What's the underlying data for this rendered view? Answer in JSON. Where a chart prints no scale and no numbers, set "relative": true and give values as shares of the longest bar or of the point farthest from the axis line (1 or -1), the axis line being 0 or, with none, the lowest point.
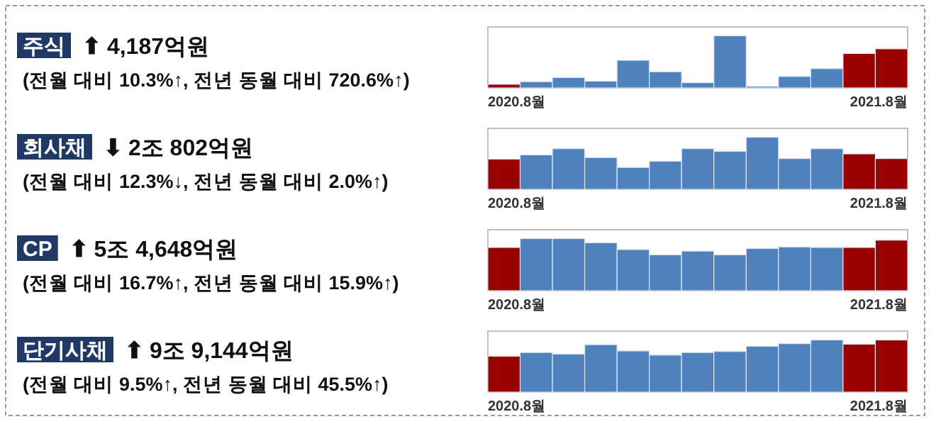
{
  "chart_data": [
    {
      "type": "other",
      "title": "주식",
      "subtitle": "⬆ 4,187억원",
      "annotations": [
        "(전월 대비 10.3%↑, 전년 동월 대비 720.6%↑)"
      ]
    },
    {
      "type": "bar",
      "categories": [
        "2020.8월",
        null,
        null,
        null,
        null,
        null,
        null,
        null,
        null,
        null,
        null,
        null,
        "2021.8월"
      ],
      "relative": true,
      "values": [
        0.07,
        0.12,
        0.2,
        0.13,
        0.53,
        0.31,
        0.1,
        1,
        0.03,
        0.22,
        0.37,
        0.66,
        0.75
      ],
      "colors": [
        "#990000",
        "#4f81bd",
        "#4f81bd",
        "#4f81bd",
        "#4f81bd",
        "#4f81bd",
        "#4f81bd",
        "#4f81bd",
        "#4f81bd",
        "#4f81bd",
        "#4f81bd",
        "#990000",
        "#990000"
      ]
    },
    {
      "type": "other",
      "title": "회사채",
      "subtitle": "⬇ 2조 802억원",
      "annotations": [
        "(전월 대비 12.3%↓, 전년 동월 대비 2.0%↑)"
      ]
    },
    {
      "type": "bar",
      "categories": [
        "2020.8월",
        null,
        null,
        null,
        null,
        null,
        null,
        null,
        null,
        null,
        null,
        null,
        "2021.8월"
      ],
      "relative": true,
      "values": [
        0.58,
        0.66,
        0.78,
        0.61,
        0.42,
        0.54,
        0.78,
        0.73,
        1,
        0.59,
        0.78,
        0.68,
        0.59
      ],
      "colors": [
        "#990000",
        "#4f81bd",
        "#4f81bd",
        "#4f81bd",
        "#4f81bd",
        "#4f81bd",
        "#4f81bd",
        "#4f81bd",
        "#4f81bd",
        "#4f81bd",
        "#4f81bd",
        "#990000",
        "#990000"
      ]
    },
    {
      "type": "other",
      "title": "CP",
      "subtitle": "⬆ 5조 4,648억원",
      "annotations": [
        "(전월 대비 16.7%↑, 전년 동월 대비 15.9%↑)"
      ]
    },
    {
      "type": "bar",
      "categories": [
        "2020.8월",
        null,
        null,
        null,
        null,
        null,
        null,
        null,
        null,
        null,
        null,
        null,
        "2021.8월"
      ],
      "relative": true,
      "values": [
        0.83,
        1,
        1,
        0.92,
        0.79,
        0.69,
        0.76,
        0.69,
        0.81,
        0.84,
        0.83,
        0.83,
        0.97
      ],
      "colors": [
        "#990000",
        "#4f81bd",
        "#4f81bd",
        "#4f81bd",
        "#4f81bd",
        "#4f81bd",
        "#4f81bd",
        "#4f81bd",
        "#4f81bd",
        "#4f81bd",
        "#4f81bd",
        "#990000",
        "#990000"
      ]
    },
    {
      "type": "other",
      "title": "단기사채",
      "subtitle": "⬆ 9조 9,144억원",
      "annotations": [
        "(전월 대비 9.5%↑, 전년 동월 대비 45.5%↑)"
      ]
    },
    {
      "type": "bar",
      "categories": [
        "2020.8월",
        null,
        null,
        null,
        null,
        null,
        null,
        null,
        null,
        null,
        null,
        null,
        "2021.8월"
      ],
      "relative": true,
      "values": [
        0.69,
        0.76,
        0.73,
        0.91,
        0.79,
        0.71,
        0.76,
        0.78,
        0.88,
        0.93,
        1,
        0.92,
        1
      ],
      "colors": [
        "#990000",
        "#4f81bd",
        "#4f81bd",
        "#4f81bd",
        "#4f81bd",
        "#4f81bd",
        "#4f81bd",
        "#4f81bd",
        "#4f81bd",
        "#4f81bd",
        "#4f81bd",
        "#990000",
        "#990000"
      ]
    }
  ]
}
